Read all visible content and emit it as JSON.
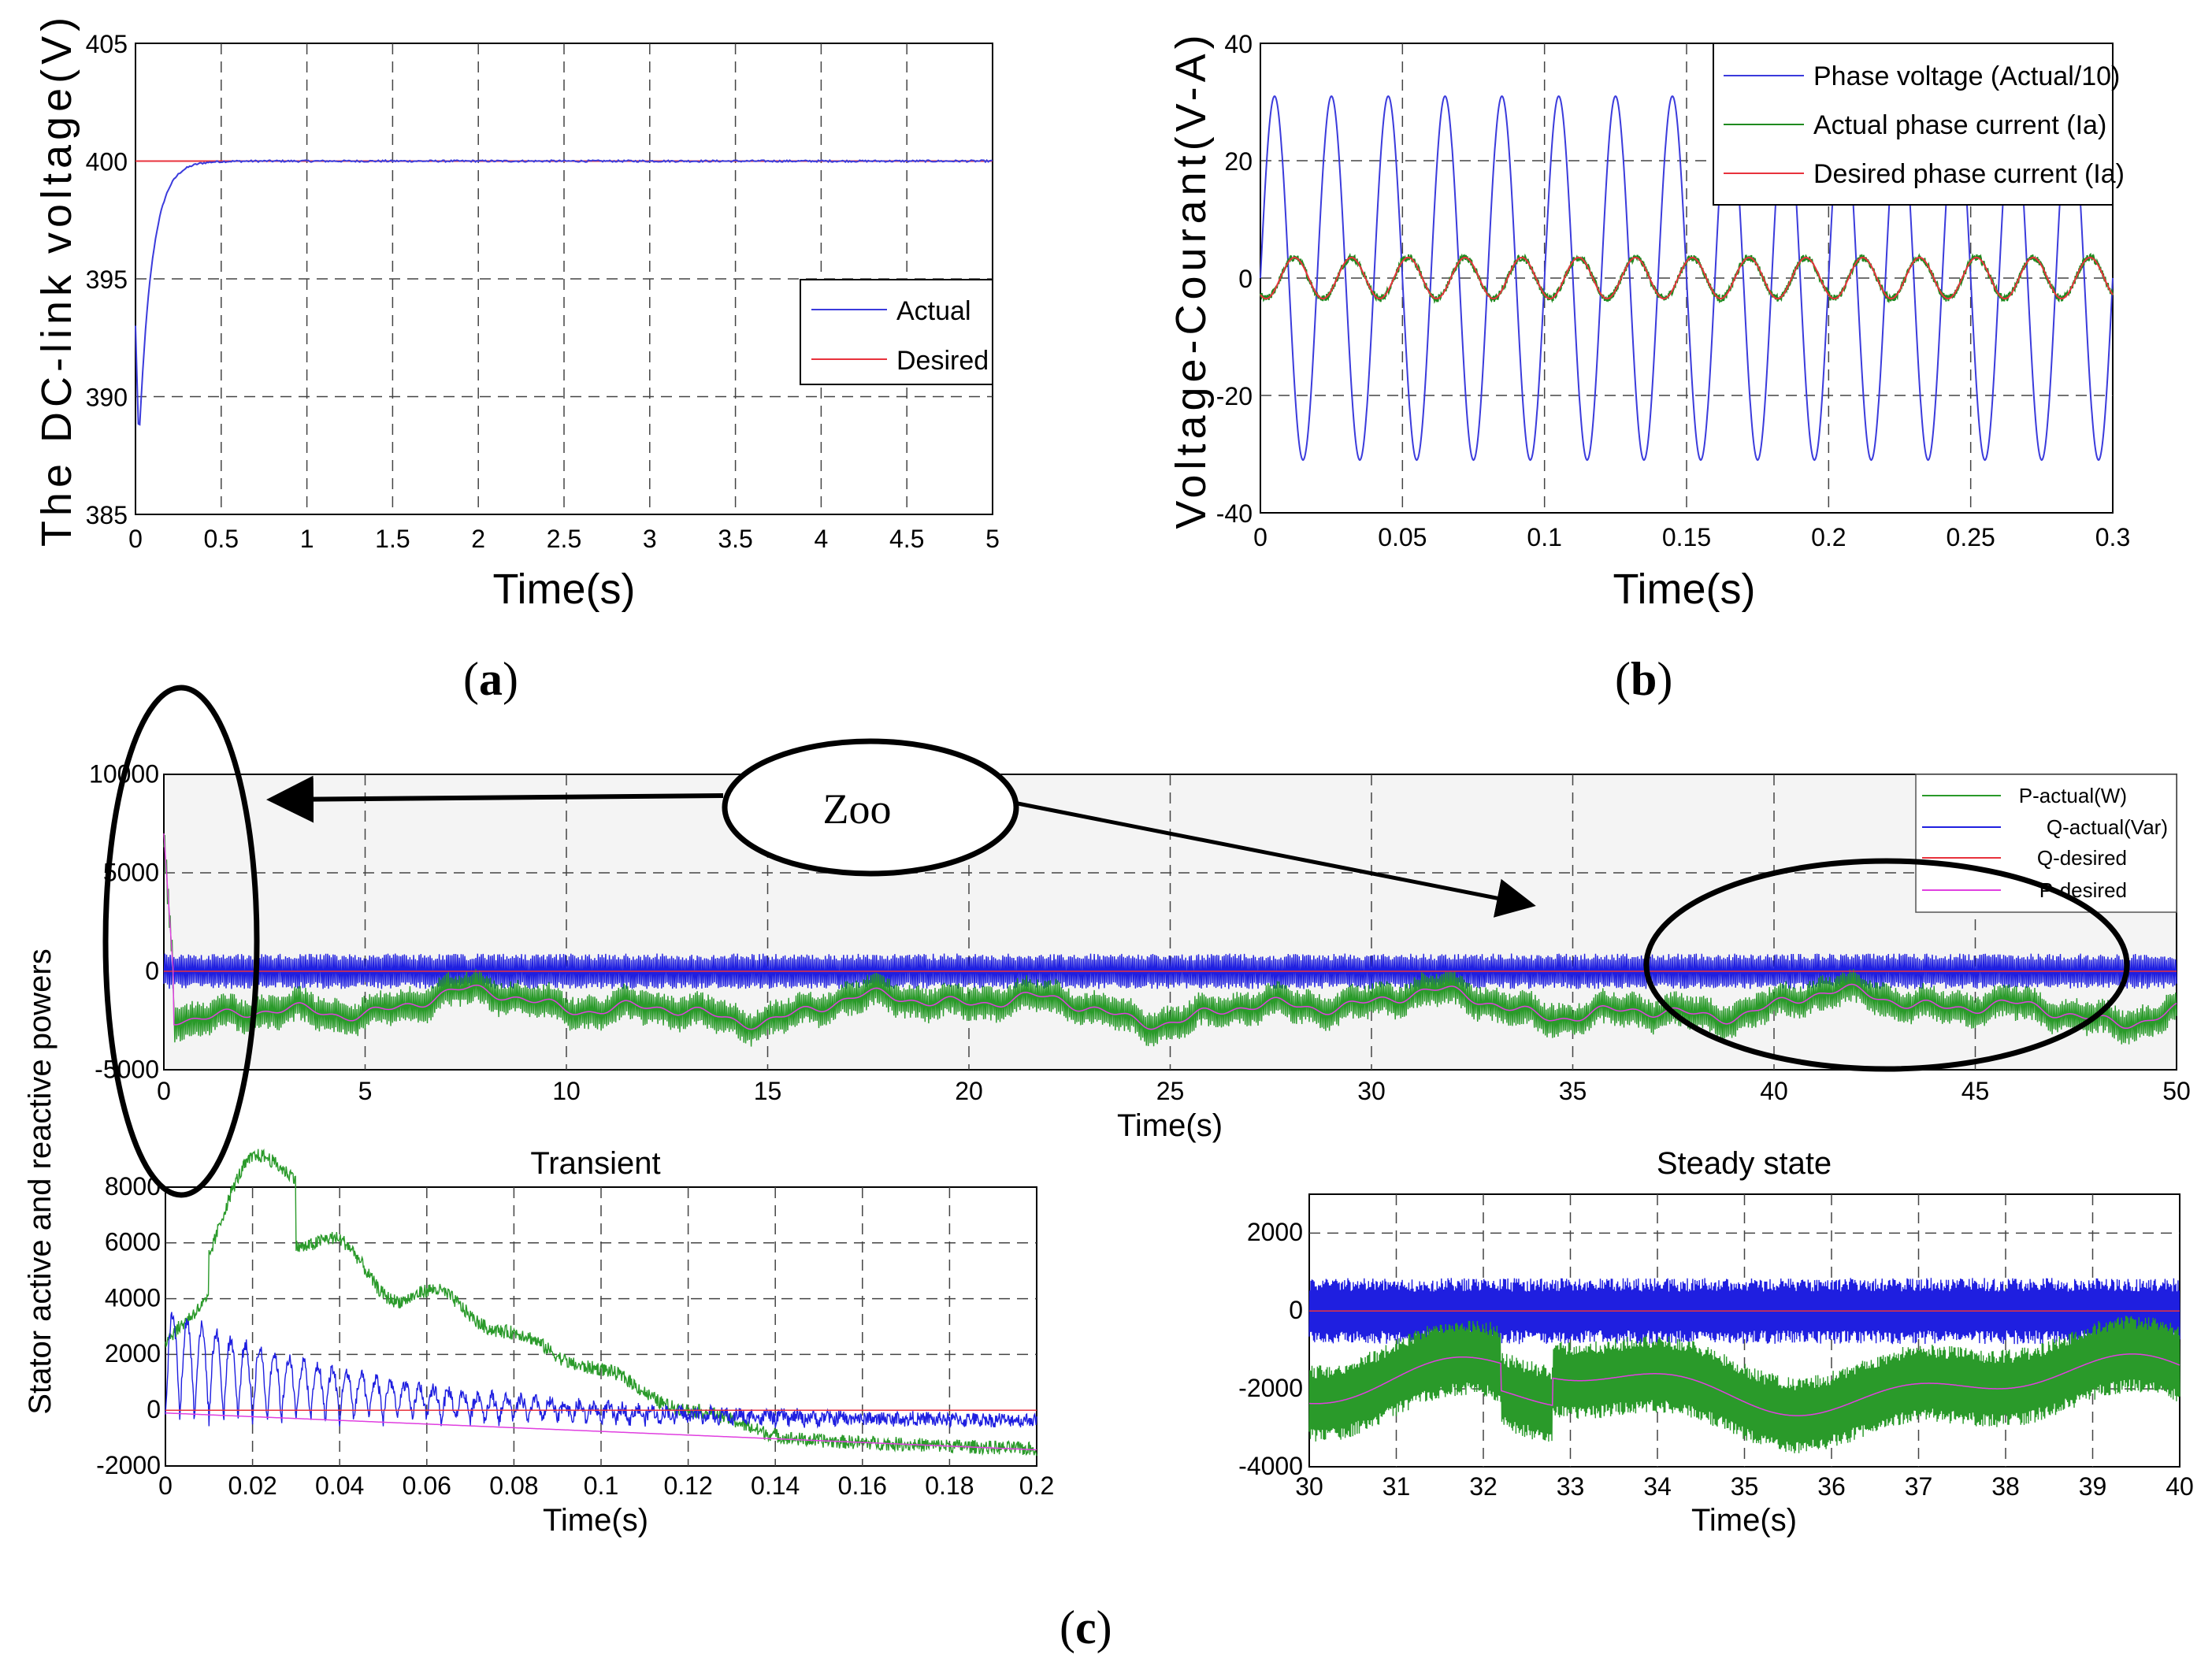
{
  "panel_labels": {
    "a": "a",
    "b": "b",
    "c": "c"
  },
  "zoom_callout": "Zoo",
  "chart_data": [
    {
      "id": "a",
      "type": "line",
      "title": "",
      "xlabel": "Time(s)",
      "ylabel": "The DC-link voltage(V)",
      "xlim": [
        0,
        5
      ],
      "ylim": [
        385,
        405
      ],
      "xticks": [
        "0",
        "0.5",
        "1",
        "1.5",
        "2",
        "2.5",
        "3",
        "3.5",
        "4",
        "4.5",
        "5"
      ],
      "yticks": [
        "385",
        "390",
        "395",
        "400",
        "405"
      ],
      "grid": true,
      "legend_position": "center-right",
      "series": [
        {
          "name": "Actual",
          "color": "#3b3bdc",
          "description": "dips to 388 at t=0.02 s then rises to 400 by t=0.4 s, steady 400 afterwards"
        },
        {
          "name": "Desired",
          "color": "#e8323c",
          "value": 400
        }
      ]
    },
    {
      "id": "b",
      "type": "line",
      "title": "",
      "xlabel": "Time(s)",
      "ylabel": "Voltage-Courant(V-A)",
      "xlim": [
        0,
        0.3
      ],
      "ylim": [
        -40,
        40
      ],
      "xticks": [
        "0",
        "0.05",
        "0.1",
        "0.15",
        "0.2",
        "0.25",
        "0.3"
      ],
      "yticks": [
        "-40",
        "-20",
        "0",
        "20",
        "40"
      ],
      "grid": true,
      "legend_position": "top-right",
      "series": [
        {
          "name": "Phase voltage (Actual/10)",
          "color": "#3b3bdc",
          "amplitude": 31,
          "frequency_hz": 50
        },
        {
          "name": "Actual phase current (Ia)",
          "color": "#1f8a1f",
          "amplitude": 3.5,
          "frequency_hz": 50
        },
        {
          "name": "Desired phase current (Ia)",
          "color": "#e8323c",
          "amplitude": 3.5,
          "frequency_hz": 50
        }
      ]
    },
    {
      "id": "c-main",
      "type": "line",
      "title": "",
      "xlabel": "Time(s)",
      "ylabel": "Stator active and reactive powers",
      "xlim": [
        0,
        50
      ],
      "ylim": [
        -5000,
        10000
      ],
      "xticks": [
        "0",
        "5",
        "10",
        "15",
        "20",
        "25",
        "30",
        "35",
        "40",
        "45",
        "50"
      ],
      "yticks": [
        "-5000",
        "0",
        "5000",
        "10000"
      ],
      "grid": true,
      "legend_position": "top-right",
      "series": [
        {
          "name": "P-actual(W)",
          "color": "#2a9a2a"
        },
        {
          "name": "Q-actual(Var)",
          "color": "#1f1fe0"
        },
        {
          "name": "Q-desired",
          "color": "#e8323c"
        },
        {
          "name": "P-desired",
          "color": "#e040e0"
        }
      ]
    },
    {
      "id": "c-transient",
      "type": "line",
      "title": "Transient",
      "xlabel": "Time(s)",
      "ylabel": "",
      "xlim": [
        0,
        0.2
      ],
      "ylim": [
        -2000,
        8000
      ],
      "xticks": [
        "0",
        "0.02",
        "0.04",
        "0.06",
        "0.08",
        "0.1",
        "0.12",
        "0.14",
        "0.16",
        "0.18",
        "0.2"
      ],
      "yticks": [
        "-2000",
        "0",
        "2000",
        "4000",
        "6000",
        "8000"
      ],
      "grid": true
    },
    {
      "id": "c-steady",
      "type": "line",
      "title": "Steady state",
      "xlabel": "Time(s)",
      "ylabel": "",
      "xlim": [
        30,
        40
      ],
      "ylim": [
        -4000,
        3000
      ],
      "xticks": [
        "30",
        "31",
        "32",
        "33",
        "34",
        "35",
        "36",
        "37",
        "38",
        "39",
        "40"
      ],
      "yticks": [
        "-4000",
        "-2000",
        "0",
        "2000"
      ],
      "grid": true
    }
  ]
}
